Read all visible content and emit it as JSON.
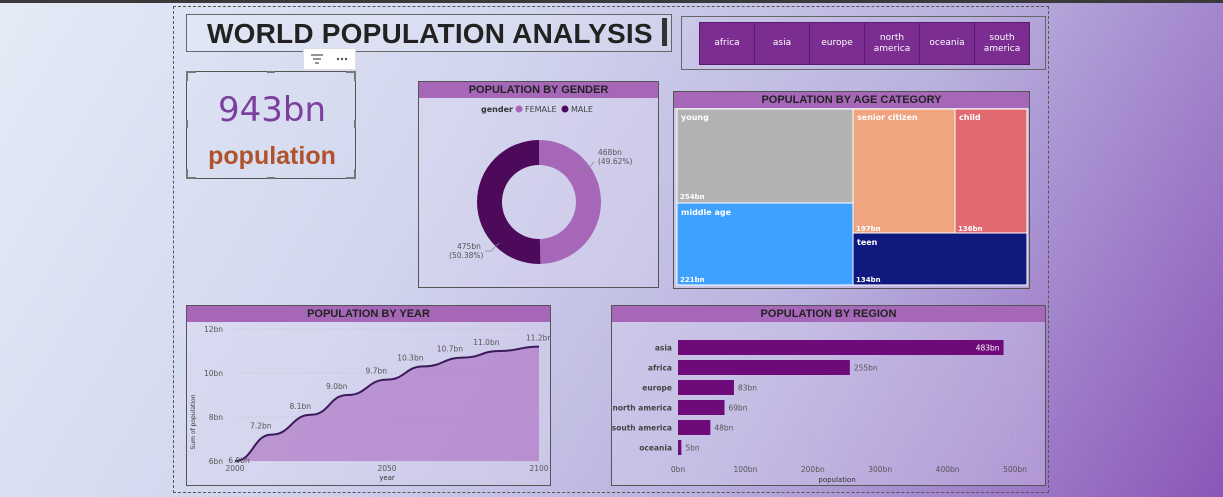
{
  "title": "WORLD POPULATION ANALYSIS",
  "slicer": {
    "items": [
      "africa",
      "asia",
      "europe",
      "north america",
      "oceania",
      "south america"
    ]
  },
  "visual_header": {
    "filter_icon": "filter-icon",
    "more_icon": "more-options-icon"
  },
  "card": {
    "value": "943bn",
    "label": "population"
  },
  "colors": {
    "accent": "#7b2d91",
    "header": "#a667b8",
    "female": "#a667b8",
    "male": "#4d0a5a",
    "bar": "#6e0a7a",
    "card_value": "#7c3f9e",
    "card_label": "#b0522a"
  },
  "chart_data": [
    {
      "type": "pie",
      "variant": "donut",
      "title": "POPULATION BY GENDER",
      "legend_title": "gender",
      "legend_position": "top",
      "series": [
        {
          "name": "FEMALE",
          "value": 468,
          "label": "468bn",
          "pct_label": "(49.62%)",
          "color": "#a667b8"
        },
        {
          "name": "MALE",
          "value": 475,
          "label": "475bn",
          "pct_label": "(50.38%)",
          "color": "#4d0a5a"
        }
      ]
    },
    {
      "type": "treemap",
      "title": "POPULATION BY AGE CATEGORY",
      "items": [
        {
          "name": "young",
          "value": 254,
          "label": "254bn",
          "color": "#b2b2b2"
        },
        {
          "name": "middle age",
          "value": 221,
          "label": "221bn",
          "color": "#3ea1ff"
        },
        {
          "name": "senior citizen",
          "value": 197,
          "label": "197bn",
          "color": "#f0a581"
        },
        {
          "name": "child",
          "value": 136,
          "label": "136bn",
          "color": "#e06a70"
        },
        {
          "name": "teen",
          "value": 134,
          "label": "134bn",
          "color": "#101a7e"
        }
      ]
    },
    {
      "type": "area",
      "title": "POPULATION BY YEAR",
      "xlabel": "year",
      "ylabel": "Sum of population",
      "x": [
        2000,
        2020,
        2040,
        2060,
        2080,
        2100
      ],
      "xticks": [
        "2000",
        "2050",
        "2100"
      ],
      "xlim": [
        2000,
        2100
      ],
      "points": [
        {
          "x": 2000,
          "y": 6.0,
          "label": "6.0bn"
        },
        {
          "x": 2012,
          "y": 7.2,
          "label": "7.2bn"
        },
        {
          "x": 2025,
          "y": 8.1,
          "label": "8.1bn"
        },
        {
          "x": 2037,
          "y": 9.0,
          "label": "9.0bn"
        },
        {
          "x": 2050,
          "y": 9.7,
          "label": "9.7bn"
        },
        {
          "x": 2062,
          "y": 10.3,
          "label": "10.3bn"
        },
        {
          "x": 2075,
          "y": 10.7,
          "label": "10.7bn"
        },
        {
          "x": 2087,
          "y": 11.0,
          "label": "11.0bn"
        },
        {
          "x": 2100,
          "y": 11.2,
          "label": "11.2bn"
        }
      ],
      "ylim": [
        6,
        12
      ],
      "yticks": [
        "6bn",
        "8bn",
        "10bn",
        "12bn"
      ],
      "ytick_values": [
        6,
        8,
        10,
        12
      ]
    },
    {
      "type": "bar",
      "orientation": "horizontal",
      "title": "POPULATION BY REGION",
      "xlabel": "population",
      "categories": [
        "asia",
        "africa",
        "europe",
        "north america",
        "south america",
        "oceania"
      ],
      "values": [
        483,
        255,
        83,
        69,
        48,
        5
      ],
      "labels": [
        "483bn",
        "255bn",
        "83bn",
        "69bn",
        "48bn",
        "5bn"
      ],
      "xlim": [
        0,
        500
      ],
      "xticks": [
        "0bn",
        "100bn",
        "200bn",
        "300bn",
        "400bn",
        "500bn"
      ],
      "xtick_values": [
        0,
        100,
        200,
        300,
        400,
        500
      ]
    }
  ]
}
